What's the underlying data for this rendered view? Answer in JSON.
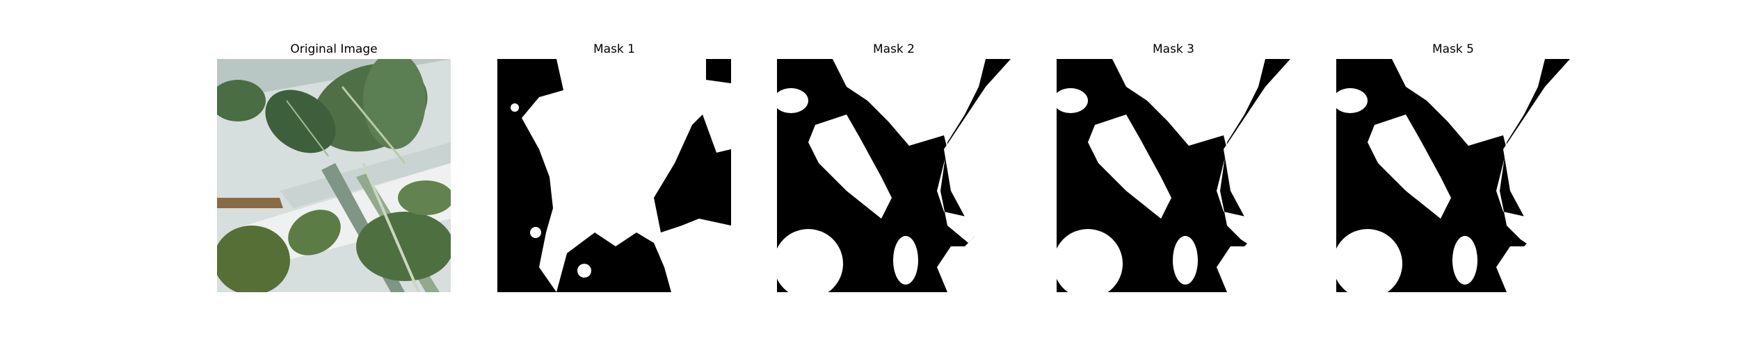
{
  "figure": {
    "panels": [
      {
        "title": "Original Image",
        "kind": "photo",
        "subject": "plant leaves in a white tube"
      },
      {
        "title": "Mask 1",
        "kind": "mask"
      },
      {
        "title": "Mask 2",
        "kind": "mask"
      },
      {
        "title": "Mask 3",
        "kind": "mask"
      },
      {
        "title": "Mask 5",
        "kind": "mask"
      }
    ],
    "colors": {
      "mask_fg": "#ffffff",
      "mask_bg": "#000000"
    }
  }
}
